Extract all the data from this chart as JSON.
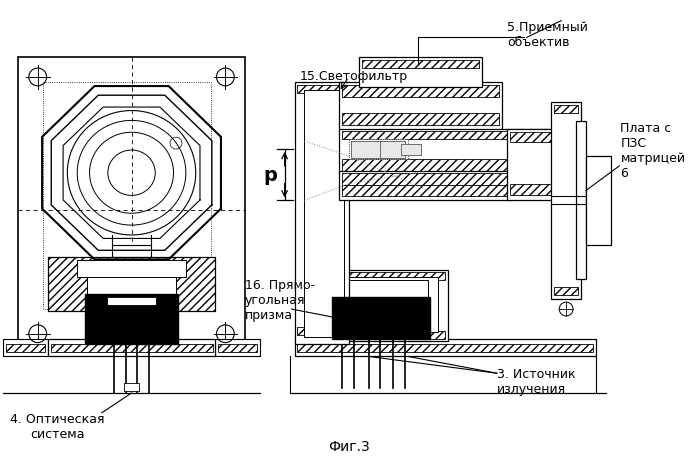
{
  "background_color": "#ffffff",
  "fig_label": "Фиг.3",
  "labels": {
    "label5": "5.Приемный\nобъектив",
    "label15": "15.Светофильтр",
    "label_plate": "Плата с\nПЗС\nматрицей\n6",
    "label16": "16. Прямо-\nугольная\nпризма",
    "label4": "4. Оптическая\nсистема",
    "label3": "3. Источник\nизлучения",
    "label_p": "р"
  }
}
